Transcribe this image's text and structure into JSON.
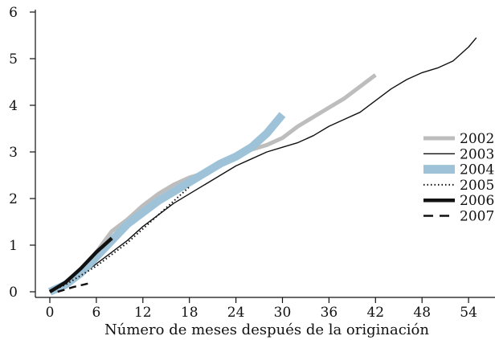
{
  "chart_data": {
    "type": "line",
    "title": "",
    "xlabel": "Número de meses después de la originación",
    "ylabel": "",
    "xlim": [
      0,
      55
    ],
    "ylim": [
      0,
      6
    ],
    "xticks": [
      0,
      6,
      12,
      18,
      24,
      30,
      36,
      42,
      48,
      54
    ],
    "yticks": [
      0,
      1,
      2,
      3,
      4,
      5,
      6
    ],
    "grid": false,
    "legend": "right",
    "series": [
      {
        "name": "2002",
        "color": "#bdbdbd",
        "style": "thick",
        "x": [
          0,
          2,
          4,
          6,
          8,
          10,
          12,
          14,
          16,
          18,
          20,
          22,
          24,
          26,
          28,
          30,
          32,
          34,
          36,
          38,
          40,
          42
        ],
        "y": [
          0.0,
          0.18,
          0.45,
          0.85,
          1.3,
          1.55,
          1.85,
          2.1,
          2.3,
          2.45,
          2.55,
          2.75,
          2.9,
          3.05,
          3.15,
          3.3,
          3.55,
          3.75,
          3.95,
          4.15,
          4.4,
          4.65
        ]
      },
      {
        "name": "2003",
        "color": "#111111",
        "style": "thin",
        "x": [
          0,
          2,
          4,
          6,
          8,
          10,
          12,
          14,
          16,
          18,
          20,
          22,
          24,
          26,
          28,
          30,
          32,
          34,
          36,
          38,
          40,
          42,
          44,
          46,
          48,
          50,
          52,
          54,
          55
        ],
        "y": [
          0.0,
          0.15,
          0.35,
          0.6,
          0.85,
          1.1,
          1.4,
          1.65,
          1.9,
          2.1,
          2.3,
          2.5,
          2.7,
          2.85,
          3.0,
          3.1,
          3.2,
          3.35,
          3.55,
          3.7,
          3.85,
          4.1,
          4.35,
          4.55,
          4.7,
          4.8,
          4.95,
          5.25,
          5.45
        ]
      },
      {
        "name": "2004",
        "color": "#9ec3d8",
        "style": "band",
        "x": [
          0,
          2,
          4,
          6,
          8,
          10,
          12,
          14,
          16,
          18,
          20,
          22,
          24,
          26,
          28,
          30
        ],
        "y": [
          0.0,
          0.15,
          0.4,
          0.75,
          1.1,
          1.45,
          1.7,
          1.95,
          2.15,
          2.35,
          2.55,
          2.75,
          2.9,
          3.1,
          3.4,
          3.8
        ]
      },
      {
        "name": "2005",
        "color": "#111111",
        "style": "dotted",
        "x": [
          0,
          2,
          4,
          6,
          8,
          10,
          12,
          14,
          16,
          18
        ],
        "y": [
          0.0,
          0.15,
          0.35,
          0.55,
          0.8,
          1.05,
          1.35,
          1.65,
          1.95,
          2.25
        ]
      },
      {
        "name": "2006",
        "color": "#111111",
        "style": "thickdark",
        "x": [
          0,
          2,
          4,
          6,
          8
        ],
        "y": [
          0.0,
          0.2,
          0.5,
          0.85,
          1.15
        ]
      },
      {
        "name": "2007",
        "color": "#111111",
        "style": "dashed",
        "x": [
          1,
          3,
          5
        ],
        "y": [
          0.0,
          0.1,
          0.18
        ]
      }
    ]
  }
}
